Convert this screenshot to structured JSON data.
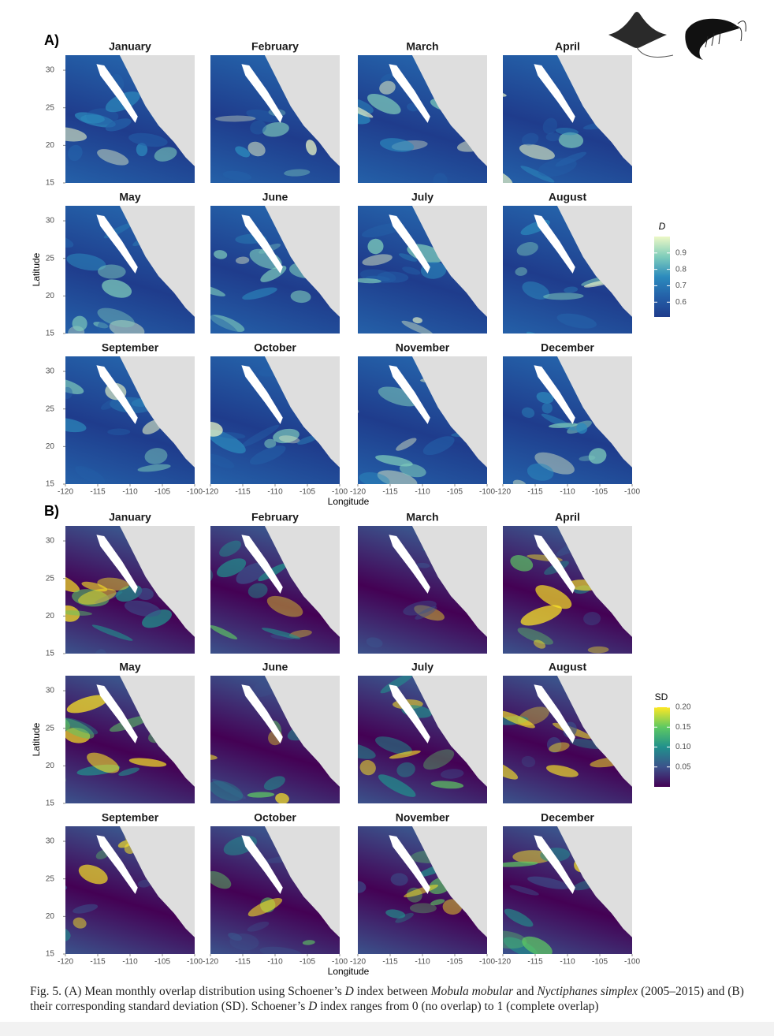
{
  "figure": {
    "axes": {
      "xlim": [
        -120,
        -100
      ],
      "ylim": [
        15,
        32
      ],
      "xticks": [
        -120,
        -115,
        -110,
        -105,
        -100
      ],
      "yticks": [
        15,
        20,
        25,
        30
      ],
      "xlabel": "Longitude",
      "ylabel": "Latitude"
    },
    "panels": [
      {
        "label": "A)",
        "months": [
          "January",
          "February",
          "March",
          "April",
          "May",
          "June",
          "July",
          "August",
          "September",
          "October",
          "November",
          "December"
        ],
        "legend_title": "D",
        "legend_lim": [
          0.51,
          1.0
        ],
        "legend_ticks": [
          0.9,
          0.8,
          0.7,
          0.6
        ],
        "colormap": [
          "#1f3c8c",
          "#2460a8",
          "#2c8bbd",
          "#7fcdbb",
          "#edf8c6"
        ]
      },
      {
        "label": "B)",
        "months": [
          "January",
          "February",
          "March",
          "April",
          "May",
          "June",
          "July",
          "August",
          "September",
          "October",
          "November",
          "December"
        ],
        "legend_title": "SD",
        "legend_lim": [
          0,
          0.2
        ],
        "legend_ticks": [
          {
            "value": 0.2,
            "label": "0.20"
          },
          0.15,
          {
            "value": 0.1,
            "label": "0.10"
          },
          0.05
        ],
        "colormap": [
          "#440154",
          "#3b528b",
          "#21918c",
          "#5ec962",
          "#fde725"
        ]
      }
    ],
    "caption": {
      "parts": [
        "Fig. 5. (A) Mean monthly overlap distribution using Schoener’s ",
        "D",
        " index between ",
        "Mobula mobular",
        " and ",
        "Nyctiphanes simplex",
        " (2005–2015) and (B) their corresponding standard deviation (SD). Schoener’s ",
        "D",
        " index ranges from 0 (no overlap) to 1 (complete overlap)"
      ]
    }
  }
}
